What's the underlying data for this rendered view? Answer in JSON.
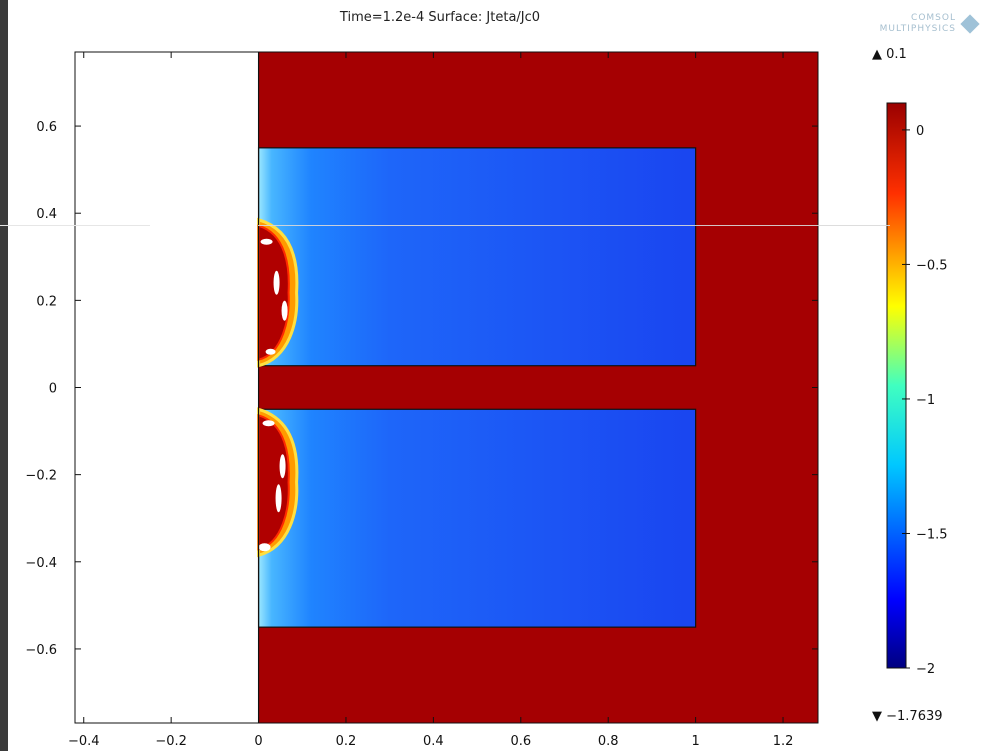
{
  "title": "Time=1.2e-4  Surface: Jteta/Jc0",
  "logo": {
    "line1": "COMSOL",
    "line2": "MULTIPHYSICS"
  },
  "colorbar": {
    "max_label": "▲ 0.1",
    "min_label": "▼ −1.7639",
    "ticks": [
      {
        "value": 0,
        "label": "0"
      },
      {
        "value": -0.5,
        "label": "−0.5"
      },
      {
        "value": -1,
        "label": "−1"
      },
      {
        "value": -1.5,
        "label": "−1.5"
      },
      {
        "value": -2,
        "label": "−2"
      }
    ],
    "range": [
      -2,
      0.1
    ]
  },
  "colors": {
    "outer_dark_red": "#a50002",
    "inner_blue": "#1e56f5",
    "inner_edge": "#86d8ff"
  },
  "chart_data": {
    "type": "heatmap",
    "title": "Time=1.2e-4  Surface: Jteta/Jc0",
    "xlabel": "",
    "ylabel": "",
    "xlim": [
      -0.42,
      1.28
    ],
    "ylim": [
      -0.77,
      0.77
    ],
    "x_ticks": [
      {
        "value": -0.4,
        "label": "−0.4"
      },
      {
        "value": -0.2,
        "label": "−0.2"
      },
      {
        "value": 0,
        "label": "0"
      },
      {
        "value": 0.2,
        "label": "0.2"
      },
      {
        "value": 0.4,
        "label": "0.4"
      },
      {
        "value": 0.6,
        "label": "0.6"
      },
      {
        "value": 0.8,
        "label": "0.8"
      },
      {
        "value": 1,
        "label": "1"
      },
      {
        "value": 1.2,
        "label": "1.2"
      }
    ],
    "y_ticks": [
      {
        "value": 0.6,
        "label": "0.6"
      },
      {
        "value": 0.4,
        "label": "0.4"
      },
      {
        "value": 0.2,
        "label": "0.2"
      },
      {
        "value": 0,
        "label": "0"
      },
      {
        "value": -0.2,
        "label": "−0.2"
      },
      {
        "value": -0.4,
        "label": "−0.4"
      },
      {
        "value": -0.6,
        "label": "−0.6"
      }
    ],
    "domain": {
      "x": [
        0,
        1.28
      ],
      "y": [
        -0.77,
        0.77
      ],
      "value": 0.1
    },
    "conductors": [
      {
        "x": [
          0,
          1
        ],
        "y": [
          0.05,
          0.55
        ],
        "value_near_axis": 0,
        "value_far": -1.76
      },
      {
        "x": [
          0,
          1
        ],
        "y": [
          -0.55,
          -0.05
        ],
        "value_near_axis": 0,
        "value_far": -1.76
      }
    ],
    "colormap": "jet",
    "value_range": [
      -1.7639,
      0.1
    ]
  }
}
